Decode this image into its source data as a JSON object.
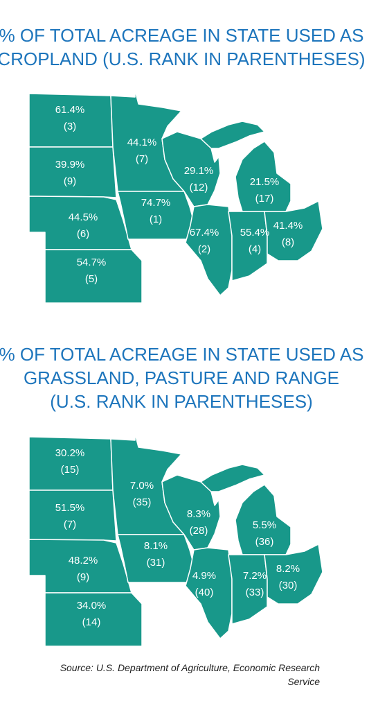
{
  "maps": [
    {
      "title": [
        "% OF TOTAL ACREAGE IN STATE USED AS",
        "CROPLAND (U.S. RANK IN PARENTHESES)"
      ],
      "states": [
        {
          "value": "61.4%",
          "rank": "(3)"
        },
        {
          "value": "39.9%",
          "rank": "(9)"
        },
        {
          "value": "44.5%",
          "rank": "(6)"
        },
        {
          "value": "54.7%",
          "rank": "(5)"
        },
        {
          "value": "44.1%",
          "rank": "(7)"
        },
        {
          "value": "74.7%",
          "rank": "(1)"
        },
        {
          "value": "29.1%",
          "rank": "(12)"
        },
        {
          "value": "21.5%",
          "rank": "(17)"
        },
        {
          "value": "67.4%",
          "rank": "(2)"
        },
        {
          "value": "55.4%",
          "rank": "(4)"
        },
        {
          "value": "41.4%",
          "rank": "(8)"
        }
      ]
    },
    {
      "title": [
        "% OF TOTAL ACREAGE IN STATE USED AS",
        "GRASSLAND, PASTURE AND RANGE",
        "(U.S. RANK IN PARENTHESES)"
      ],
      "states": [
        {
          "value": "30.2%",
          "rank": "(15)"
        },
        {
          "value": "51.5%",
          "rank": "(7)"
        },
        {
          "value": "48.2%",
          "rank": "(9)"
        },
        {
          "value": "34.0%",
          "rank": "(14)"
        },
        {
          "value": "7.0%",
          "rank": "(35)"
        },
        {
          "value": "8.1%",
          "rank": "(31)"
        },
        {
          "value": "8.3%",
          "rank": "(28)"
        },
        {
          "value": "5.5%",
          "rank": "(36)"
        },
        {
          "value": "4.9%",
          "rank": "(40)"
        },
        {
          "value": "7.2%",
          "rank": "(33)"
        },
        {
          "value": "8.2%",
          "rank": "(30)"
        }
      ]
    }
  ],
  "source": [
    "Source: U.S. Department of Agriculture, Economic Research",
    "Service"
  ]
}
